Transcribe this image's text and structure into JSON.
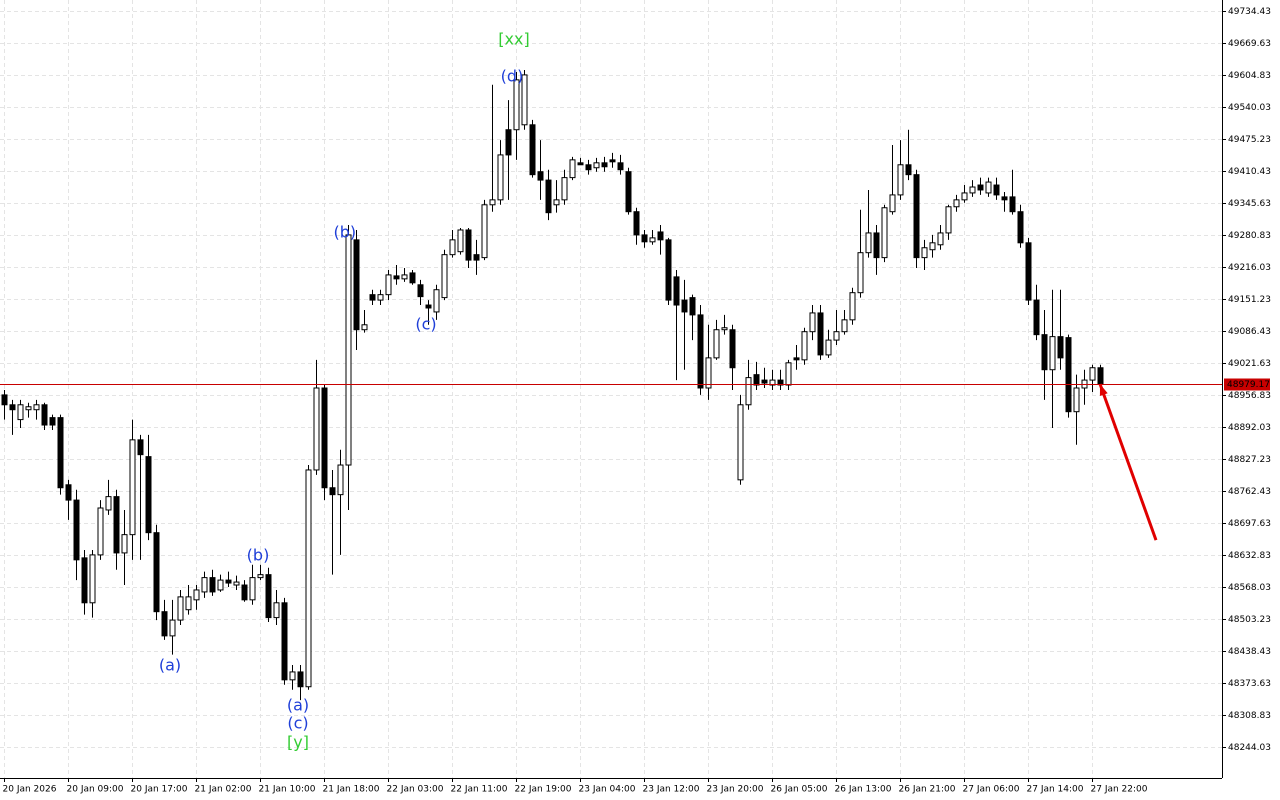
{
  "chart_data": {
    "type": "candlestick",
    "up_color": "#ffffff",
    "down_color": "#000000",
    "grid": true,
    "xlim": [
      -0.5,
      152.25
    ],
    "ylim": [
      48181.2,
      49756.7
    ],
    "yticks": [
      49734.43,
      49669.63,
      49604.83,
      49540.03,
      49475.23,
      49410.43,
      49345.63,
      49280.83,
      49216.03,
      49151.23,
      49086.43,
      49021.63,
      48956.83,
      48892.03,
      48827.23,
      48762.43,
      48697.63,
      48632.83,
      48568.03,
      48503.23,
      48438.43,
      48373.63,
      48308.83,
      48244.03
    ],
    "xticks": [
      {
        "value": 0,
        "label": "20 Jan 2026"
      },
      {
        "value": 8,
        "label": "20 Jan 09:00"
      },
      {
        "value": 16,
        "label": "20 Jan 17:00"
      },
      {
        "value": 24,
        "label": "21 Jan 02:00"
      },
      {
        "value": 32,
        "label": "21 Jan 10:00"
      },
      {
        "value": 40,
        "label": "21 Jan 18:00"
      },
      {
        "value": 48,
        "label": "22 Jan 03:00"
      },
      {
        "value": 56,
        "label": "22 Jan 11:00"
      },
      {
        "value": 64,
        "label": "22 Jan 19:00"
      },
      {
        "value": 72,
        "label": "23 Jan 04:00"
      },
      {
        "value": 80,
        "label": "23 Jan 12:00"
      },
      {
        "value": 88,
        "label": "23 Jan 20:00"
      },
      {
        "value": 96,
        "label": "26 Jan 05:00"
      },
      {
        "value": 104,
        "label": "26 Jan 13:00"
      },
      {
        "value": 112,
        "label": "26 Jan 21:00"
      },
      {
        "value": 120,
        "label": "27 Jan 06:00"
      },
      {
        "value": 128,
        "label": "27 Jan 14:00"
      },
      {
        "value": 136,
        "label": "27 Jan 22:00"
      }
    ],
    "open": [
      48957,
      48937,
      48907,
      48927,
      48927,
      48937,
      48911,
      48911,
      48775,
      48744,
      48627,
      48536,
      48633,
      48724,
      48751,
      48637,
      48674,
      48866,
      48832,
      48678,
      48518,
      48469,
      48501,
      48522,
      48542,
      48558,
      48587,
      48562,
      48582,
      48572,
      48572,
      48542,
      48587,
      48593,
      48506,
      48536,
      48380,
      48396,
      48366,
      48805,
      48971,
      48769,
      48755,
      48815,
      49271,
      49089,
      49160,
      49149,
      49160,
      49198,
      49192,
      49204,
      49180,
      49139,
      49125,
      49154,
      49241,
      49247,
      49291,
      49241,
      49235,
      49342,
      49352,
      49494,
      49494,
      49504,
      49504,
      49409,
      49392,
      49342,
      49352,
      49397,
      49427,
      49423,
      49417,
      49427,
      49433,
      49427,
      49409,
      49328,
      49281,
      49267,
      49287,
      49271,
      49196,
      49149,
      49154,
      49119,
      48971,
      49032,
      49089,
      49089,
      48785,
      48937,
      48998,
      48987,
      48977,
      48987,
      48977,
      49032,
      49028,
      49085,
      49123,
      49038,
      49068,
      49085,
      49109,
      49164,
      49245,
      49285,
      49235,
      49328,
      49362,
      49423,
      49403,
      49235,
      49251,
      49261,
      49285,
      49338,
      49352,
      49366,
      49382,
      49366,
      49382,
      49358,
      49358,
      49328,
      49265,
      49149,
      49079,
      49008,
      49075,
      49073,
      48923,
      48971,
      48987,
      49012
    ],
    "high": [
      48967,
      48947,
      48947,
      48941,
      48947,
      48941,
      48917,
      48917,
      48785,
      48765,
      48643,
      48643,
      48744,
      48785,
      48765,
      48724,
      48907,
      48876,
      48876,
      48694,
      48542,
      48542,
      48562,
      48572,
      48572,
      48599,
      48603,
      48593,
      48599,
      48591,
      48582,
      48613,
      48613,
      48607,
      48562,
      48546,
      48410,
      48410,
      48815,
      49028,
      48977,
      48805,
      48846,
      49301,
      49291,
      49129,
      49170,
      49170,
      49210,
      49220,
      49214,
      49210,
      49190,
      49149,
      49180,
      49251,
      49291,
      49295,
      49295,
      49271,
      49352,
      49585,
      49473,
      49554,
      49611,
      49615,
      49514,
      49473,
      49413,
      49392,
      49413,
      49439,
      49437,
      49433,
      49437,
      49439,
      49447,
      49443,
      49417,
      49336,
      49291,
      49291,
      49301,
      49275,
      49210,
      49190,
      49160,
      49139,
      49099,
      49109,
      49119,
      49099,
      48957,
      49028,
      49024,
      49012,
      49008,
      49008,
      49028,
      49058,
      49093,
      49139,
      49139,
      49089,
      49129,
      49129,
      49174,
      49332,
      49372,
      49301,
      49342,
      49463,
      49473,
      49494,
      49413,
      49271,
      49281,
      49301,
      49342,
      49362,
      49382,
      49392,
      49397,
      49397,
      49397,
      49368,
      49413,
      49342,
      49275,
      49180,
      49129,
      49170,
      49170,
      49079,
      48998,
      49008,
      49018,
      49018
    ],
    "low": [
      48907,
      48876,
      48890,
      48911,
      48907,
      48886,
      48886,
      48755,
      48704,
      48582,
      48512,
      48506,
      48623,
      48714,
      48603,
      48572,
      48623,
      48623,
      48663,
      48501,
      48461,
      48431,
      48491,
      48512,
      48522,
      48546,
      48550,
      48558,
      48568,
      48562,
      48538,
      48532,
      48582,
      48497,
      48491,
      48370,
      48360,
      48339,
      48360,
      48795,
      48744,
      48593,
      48633,
      48724,
      49048,
      49083,
      49139,
      49139,
      49149,
      49180,
      49186,
      49180,
      49139,
      49099,
      49109,
      49149,
      49235,
      49241,
      49214,
      49200,
      49230,
      49328,
      49342,
      49352,
      49433,
      49494,
      49397,
      49352,
      49311,
      49326,
      49342,
      49392,
      49423,
      49403,
      49409,
      49409,
      49417,
      49403,
      49322,
      49261,
      49255,
      49261,
      49241,
      49139,
      48987,
      49008,
      49068,
      48957,
      48947,
      49028,
      49079,
      48967,
      48775,
      48927,
      48967,
      48971,
      48967,
      48967,
      48967,
      49008,
      49018,
      49068,
      49028,
      49032,
      49058,
      49079,
      49099,
      49154,
      49235,
      49200,
      49226,
      49322,
      49352,
      49392,
      49214,
      49210,
      49235,
      49251,
      49271,
      49328,
      49346,
      49358,
      49362,
      49358,
      49352,
      49328,
      49322,
      49255,
      49139,
      49068,
      48947,
      48890,
      49008,
      48911,
      48856,
      48937,
      48963,
      48967
    ],
    "close": [
      48937,
      48927,
      48937,
      48933,
      48937,
      48896,
      48896,
      48769,
      48744,
      48623,
      48536,
      48633,
      48728,
      48751,
      48637,
      48674,
      48866,
      48836,
      48678,
      48518,
      48469,
      48501,
      48548,
      48548,
      48562,
      48587,
      48558,
      48582,
      48576,
      48578,
      48542,
      48587,
      48593,
      48506,
      48536,
      48380,
      48396,
      48366,
      48805,
      48971,
      48769,
      48755,
      48815,
      49281,
      49089,
      49099,
      49149,
      49160,
      49200,
      49192,
      49200,
      49184,
      49156,
      49133,
      49170,
      49241,
      49271,
      49291,
      49230,
      49230,
      49342,
      49352,
      49443,
      49443,
      49595,
      49605,
      49403,
      49392,
      49326,
      49352,
      49397,
      49433,
      49423,
      49413,
      49427,
      49419,
      49429,
      49413,
      49328,
      49281,
      49267,
      49275,
      49271,
      49149,
      49139,
      49125,
      49119,
      48971,
      49032,
      49089,
      49093,
      49012,
      48937,
      48992,
      48977,
      48981,
      48987,
      48977,
      49022,
      49028,
      49085,
      49123,
      49038,
      49068,
      49085,
      49109,
      49164,
      49245,
      49285,
      49235,
      49336,
      49362,
      49423,
      49403,
      49235,
      49255,
      49265,
      49285,
      49338,
      49352,
      49366,
      49378,
      49372,
      49388,
      49362,
      49352,
      49328,
      49265,
      49149,
      49079,
      49008,
      49075,
      49032,
      48923,
      48971,
      48987,
      49012,
      48979
    ],
    "last_price": 48979.17,
    "last_price_color": "#c80000",
    "forecast": {
      "x": [
        137,
        144
      ],
      "values": [
        48979,
        48663
      ],
      "color": "#e00000"
    },
    "annotations": [
      {
        "text": "[xx]",
        "x": 63.75,
        "y": 49676,
        "color": "#33cc33"
      },
      {
        "text": "(d)",
        "x": 63.5,
        "y": 49601,
        "color": "#1f3fd8"
      },
      {
        "text": "(b)",
        "x": 42.6,
        "y": 49285,
        "color": "#1f3fd8"
      },
      {
        "text": "(c)",
        "x": 52.75,
        "y": 49099,
        "color": "#1f3fd8"
      },
      {
        "text": "(b)",
        "x": 31.75,
        "y": 48631,
        "color": "#1f3fd8"
      },
      {
        "text": "(a)",
        "x": 20.75,
        "y": 48408,
        "color": "#1f3fd8"
      },
      {
        "text": "(a)",
        "x": 36.75,
        "y": 48327,
        "color": "#1f3fd8"
      },
      {
        "text": "(c)",
        "x": 36.75,
        "y": 48291,
        "color": "#1f3fd8"
      },
      {
        "text": "[y]",
        "x": 36.75,
        "y": 48252,
        "color": "#33cc33"
      }
    ]
  }
}
